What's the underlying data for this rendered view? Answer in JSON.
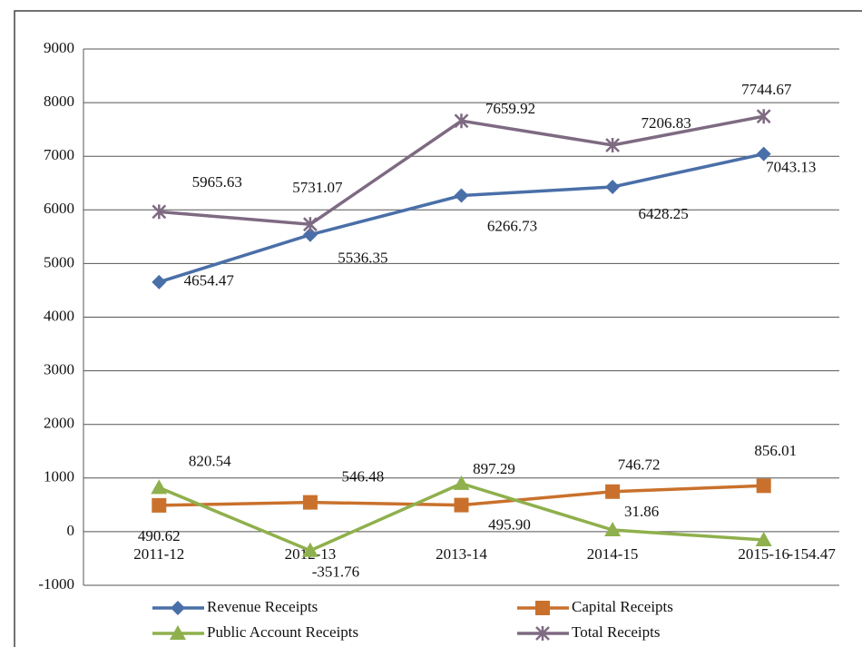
{
  "chart_data": {
    "type": "line",
    "categories": [
      "2011-12",
      "2012-13",
      "2013-14",
      "2014-15",
      "2015-16"
    ],
    "series": [
      {
        "name": "Revenue Receipts",
        "color": "#4a6fa8",
        "marker": "diamond",
        "values": [
          4654.47,
          5536.35,
          6266.73,
          6428.25,
          7043.13
        ]
      },
      {
        "name": "Capital Receipts",
        "color": "#c9712c",
        "marker": "square",
        "values": [
          490.62,
          546.48,
          495.9,
          746.72,
          856.01
        ],
        "value_labels": [
          "490.62",
          "546.48",
          "495.90",
          "746.72",
          "856.01"
        ]
      },
      {
        "name": "Public Account Receipts",
        "color": "#8fb04c",
        "marker": "triangle",
        "values": [
          820.54,
          -351.76,
          897.29,
          31.86,
          -154.47
        ]
      },
      {
        "name": "Total Receipts",
        "color": "#7e6a82",
        "marker": "star",
        "values": [
          5965.63,
          5731.07,
          7659.92,
          7206.83,
          7744.67
        ]
      }
    ],
    "ylim": [
      -1000,
      9000
    ],
    "yticks": [
      -1000,
      0,
      1000,
      2000,
      3000,
      4000,
      5000,
      6000,
      7000,
      8000,
      9000
    ],
    "grid": true,
    "legend": "bottom"
  }
}
